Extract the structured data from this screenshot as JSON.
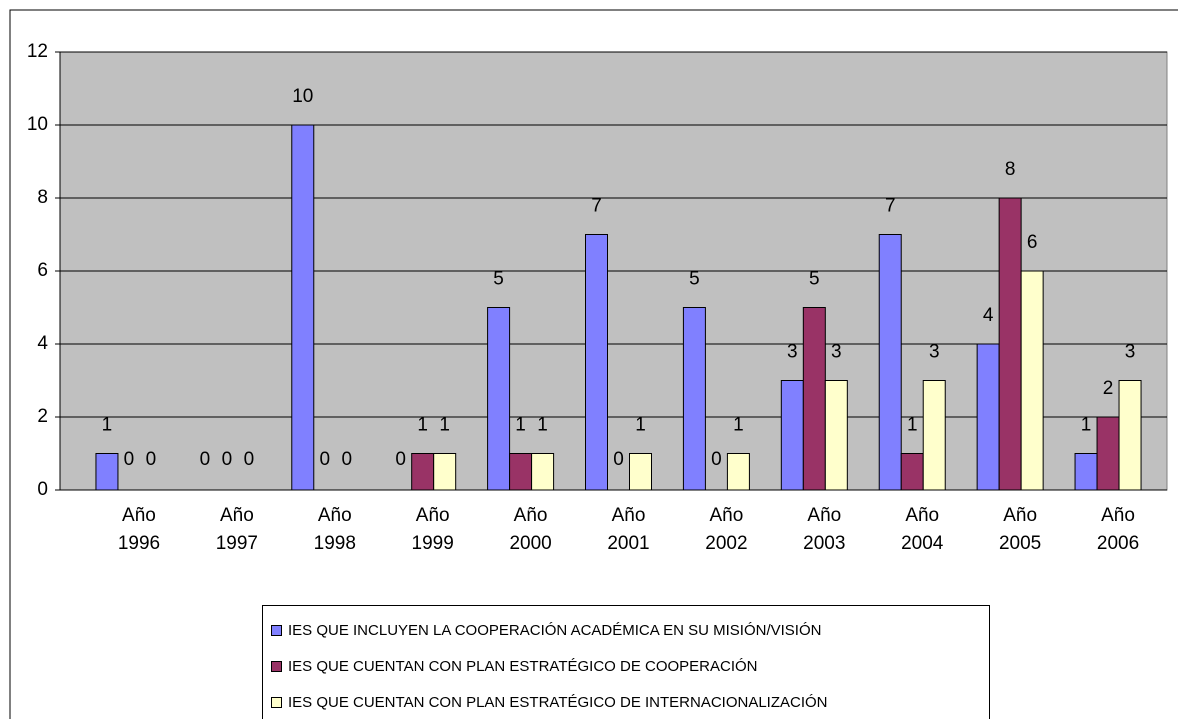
{
  "chart_data": {
    "type": "bar",
    "categories": [
      "Año 1996",
      "Año 1997",
      "Año 1998",
      "Año 1999",
      "Año 2000",
      "Año 2001",
      "Año 2002",
      "Año 2003",
      "Año 2004",
      "Año 2005",
      "Año 2006"
    ],
    "series": [
      {
        "name": "IES QUE INCLUYEN LA COOPERACIÓN ACADÉMICA EN SU MISIÓN/VISIÓN",
        "color": "#8080ff",
        "values": [
          1,
          0,
          10,
          0,
          5,
          7,
          5,
          3,
          7,
          4,
          1
        ]
      },
      {
        "name": "IES QUE CUENTAN CON PLAN ESTRATÉGICO DE COOPERACIÓN",
        "color": "#993366",
        "values": [
          0,
          0,
          0,
          1,
          1,
          0,
          0,
          5,
          1,
          8,
          2
        ]
      },
      {
        "name": "IES QUE CUENTAN CON PLAN ESTRATÉGICO DE INTERNACIONALIZACIÓN",
        "color": "#ffffcc",
        "values": [
          0,
          0,
          0,
          1,
          1,
          1,
          1,
          3,
          3,
          6,
          3
        ]
      }
    ],
    "ylim": [
      0,
      12
    ],
    "yticks": [
      0,
      2,
      4,
      6,
      8,
      10,
      12
    ],
    "grid": true,
    "legend": "bottom"
  }
}
